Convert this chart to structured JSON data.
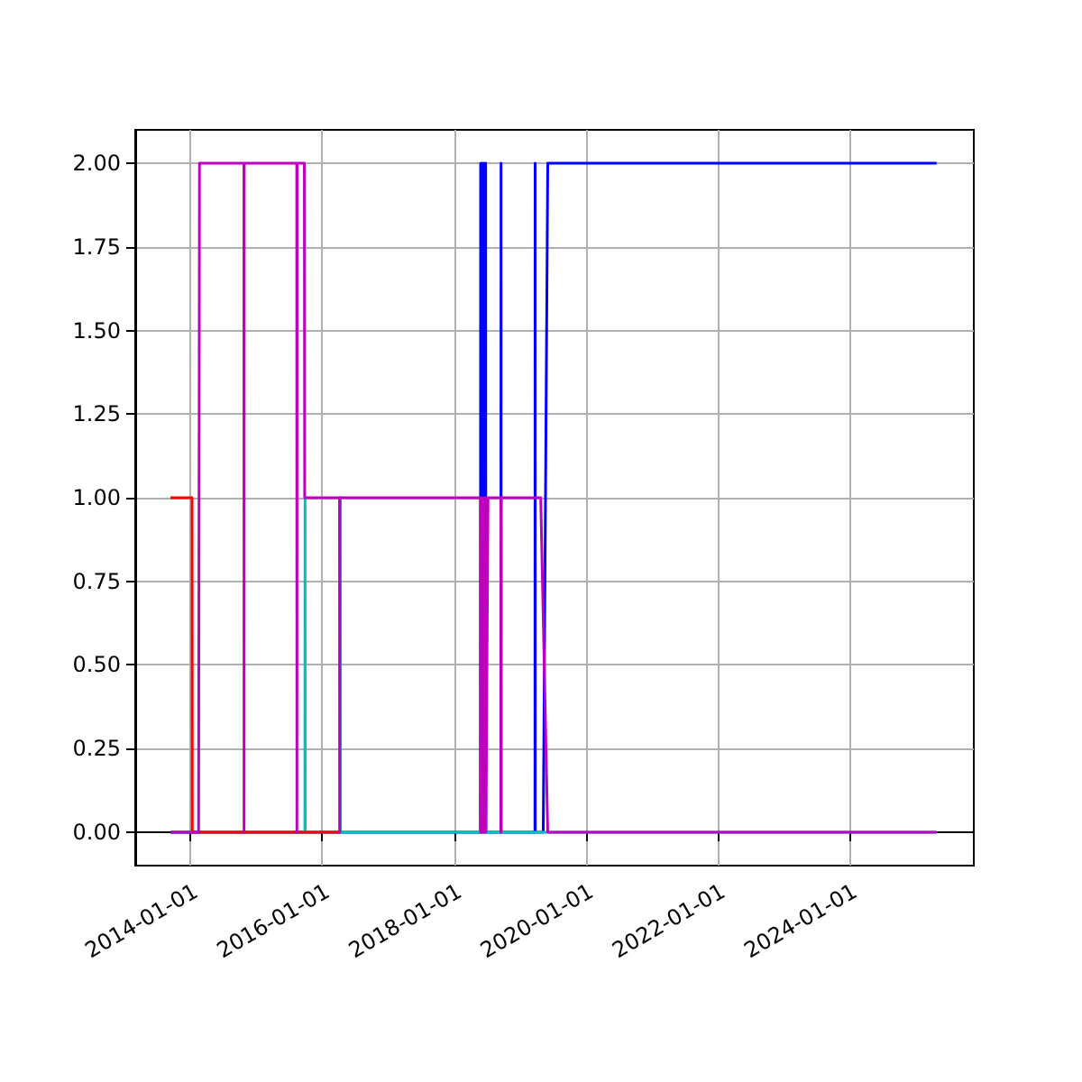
{
  "chart_data": {
    "type": "line",
    "xlim": [
      "2013-03-01",
      "2025-11-20"
    ],
    "ylim": [
      -0.1,
      2.1
    ],
    "xticks": [
      "2014-01-01",
      "2016-01-01",
      "2018-01-01",
      "2020-01-01",
      "2022-01-01",
      "2024-01-01"
    ],
    "yticks": [
      {
        "value": 0,
        "label": "0.00"
      },
      {
        "value": 0.25,
        "label": "0.25"
      },
      {
        "value": 0.5,
        "label": "0.50"
      },
      {
        "value": 0.75,
        "label": "0.75"
      },
      {
        "value": 1,
        "label": "1.00"
      },
      {
        "value": 1.25,
        "label": "1.25"
      },
      {
        "value": 1.5,
        "label": "1.50"
      },
      {
        "value": 1.75,
        "label": "1.75"
      },
      {
        "value": 2,
        "label": "2.00"
      }
    ],
    "grid": true,
    "series": [
      {
        "color": "#0000ff",
        "x": [
          "2013-09-12",
          "2018-05-27",
          "2018-05-28",
          "2018-05-29",
          "2018-06-05",
          "2018-06-06",
          "2018-06-15",
          "2018-06-16",
          "2018-06-25",
          "2018-06-26",
          "2018-09-17",
          "2018-09-18",
          "2018-09-19",
          "2019-03-25",
          "2019-03-26",
          "2019-03-27",
          "2019-05-10",
          "2019-06-04",
          "2025-04-28"
        ],
        "values": [
          0,
          0,
          2,
          0,
          2,
          0,
          2,
          0,
          2,
          0,
          0,
          2,
          0,
          0,
          2,
          0,
          0,
          2,
          2
        ]
      },
      {
        "color": "#00bfbf",
        "x": [
          "2013-09-12",
          "2015-09-27",
          "2015-09-28",
          "2015-09-29",
          "2016-04-09",
          "2016-04-10",
          "2016-04-11",
          "2025-04-28"
        ],
        "values": [
          0,
          0,
          1,
          0,
          0,
          1,
          0,
          0
        ]
      },
      {
        "color": "#ff0000",
        "x": [
          "2013-09-12",
          "2014-01-10",
          "2014-01-11",
          "2016-04-08"
        ],
        "values": [
          1,
          1,
          0,
          0
        ]
      },
      {
        "color": "#bf00bf",
        "x": [
          "2013-09-12",
          "2014-02-15",
          "2014-02-20",
          "2014-10-24",
          "2014-10-25",
          "2014-10-26",
          "2015-08-13",
          "2015-08-14",
          "2015-08-15",
          "2015-09-24",
          "2015-09-26",
          "2016-04-06",
          "2016-04-07",
          "2016-04-08",
          "2018-05-28",
          "2018-05-29",
          "2018-06-05",
          "2018-06-06",
          "2018-06-15",
          "2018-06-16",
          "2018-06-25",
          "2018-06-26",
          "2018-07-08",
          "2018-09-17",
          "2018-09-18",
          "2018-09-19",
          "2019-04-26",
          "2019-06-04",
          "2025-04-28"
        ],
        "values": [
          0,
          0,
          2,
          2,
          0,
          2,
          2,
          0,
          2,
          2,
          1,
          1,
          0,
          1,
          1,
          0,
          1,
          0,
          1,
          0,
          1,
          0,
          1,
          1,
          0,
          1,
          1,
          0,
          0
        ]
      }
    ]
  }
}
